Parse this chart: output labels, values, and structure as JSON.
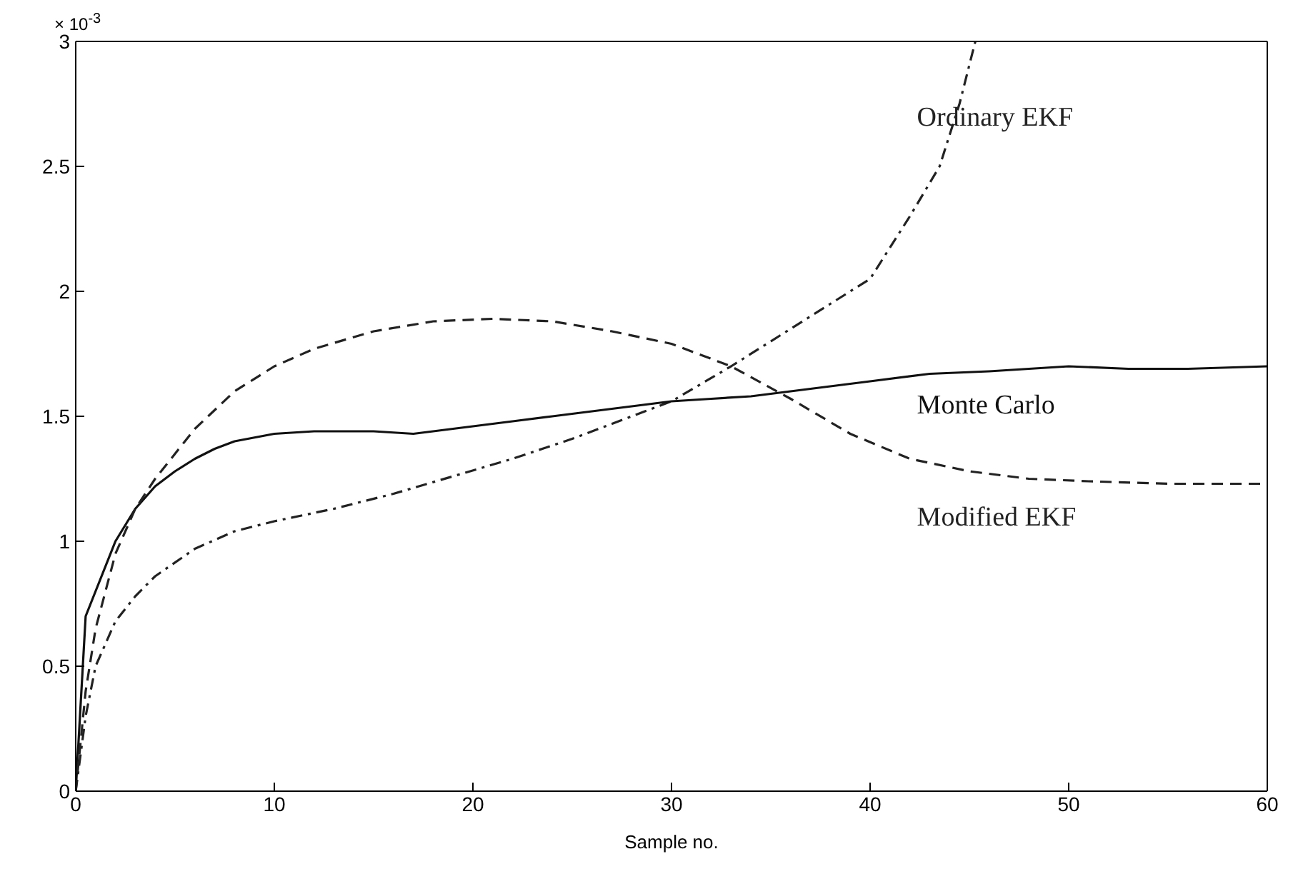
{
  "chart_data": {
    "type": "line",
    "xlabel": "Sample no.",
    "annotations": [
      "× 10$^{-3}$"
    ],
    "xlim": [
      0,
      60
    ],
    "xticks": [
      0,
      10,
      20,
      30,
      40,
      50,
      60
    ],
    "ylim": [
      0,
      3
    ],
    "yticks": [
      0,
      0.5,
      1,
      1.5,
      2,
      2.5,
      3
    ],
    "legend": false,
    "marker": "none",
    "series": [
      {
        "name": "Ordinary EKF",
        "color": "#222222",
        "line_style": "dashdot",
        "x": [
          0,
          0.5,
          1,
          2,
          3,
          4,
          6,
          8,
          10,
          13,
          16,
          19,
          22,
          25,
          28,
          30,
          33,
          36,
          38,
          40,
          42,
          43.5,
          44.5,
          45.3
        ],
        "values": [
          0,
          0.3,
          0.5,
          0.68,
          0.78,
          0.86,
          0.97,
          1.04,
          1.08,
          1.13,
          1.19,
          1.26,
          1.33,
          1.41,
          1.5,
          1.56,
          1.7,
          1.85,
          1.95,
          2.05,
          2.3,
          2.5,
          2.75,
          3
        ]
      },
      {
        "name": "Monte Carlo",
        "color": "#111111",
        "line_style": "solid",
        "x": [
          0,
          0.5,
          1,
          2,
          3,
          4,
          5,
          6,
          7,
          8,
          10,
          12,
          15,
          17,
          20,
          22,
          24,
          26,
          28,
          30,
          32,
          34,
          36,
          38,
          40,
          43,
          46,
          50,
          53,
          56,
          60
        ],
        "values": [
          0,
          0.7,
          0.8,
          1,
          1.13,
          1.22,
          1.28,
          1.33,
          1.37,
          1.4,
          1.43,
          1.44,
          1.44,
          1.43,
          1.46,
          1.48,
          1.5,
          1.52,
          1.54,
          1.56,
          1.57,
          1.58,
          1.6,
          1.62,
          1.64,
          1.67,
          1.68,
          1.7,
          1.69,
          1.69,
          1.7
        ]
      },
      {
        "name": "Modified EKF",
        "color": "#222222",
        "line_style": "dashed",
        "x": [
          0,
          0.5,
          1,
          2,
          3,
          4,
          6,
          8,
          10,
          12,
          15,
          18,
          21,
          24,
          27,
          30,
          33,
          36,
          39,
          42,
          45,
          48,
          51,
          55,
          60
        ],
        "values": [
          0,
          0.4,
          0.65,
          0.95,
          1.13,
          1.25,
          1.45,
          1.6,
          1.7,
          1.77,
          1.84,
          1.88,
          1.89,
          1.88,
          1.84,
          1.79,
          1.7,
          1.57,
          1.43,
          1.33,
          1.28,
          1.25,
          1.24,
          1.23,
          1.23
        ]
      }
    ]
  }
}
